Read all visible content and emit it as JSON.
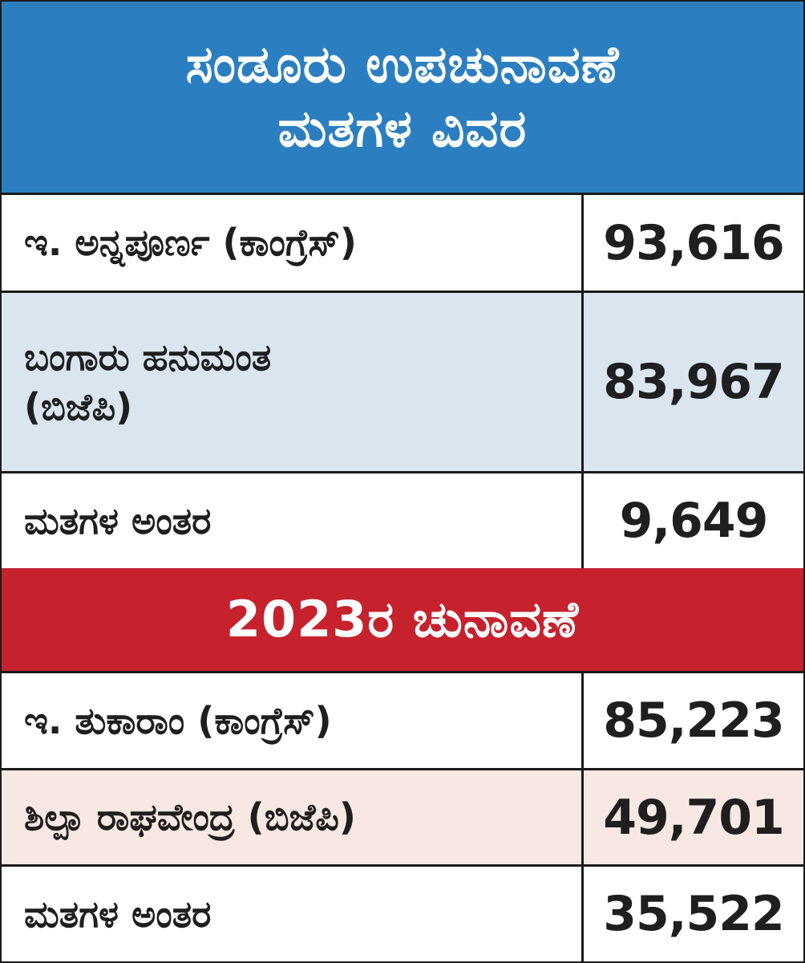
{
  "byelection": {
    "title_line1": "ಸಂಡೂರು ಉಪಚುನಾವಣೆ",
    "title_line2": "ಮತಗಳ ವಿವರ",
    "rows": [
      {
        "name": "ಇ. ಅನ್ನಪೂರ್ಣ (ಕಾಂಗ್ರೆಸ್)",
        "votes": "93,616"
      },
      {
        "name_line1": "ಬಂಗಾರು ಹನುಮಂತ",
        "name_line2": "(ಬಿಜೆಪಿ)",
        "votes": "83,967"
      },
      {
        "name": "ಮತಗಳ ಅಂತರ",
        "votes": "9,649"
      }
    ]
  },
  "election2023": {
    "title": "2023ರ ಚುನಾವಣೆ",
    "rows": [
      {
        "name": "ಇ. ತುಕಾರಾಂ (ಕಾಂಗ್ರೆಸ್)",
        "votes": "85,223"
      },
      {
        "name": "ಶಿಲ್ಪಾ ರಾಘವೇಂದ್ರ (ಬಿಜೆಪಿ)",
        "votes": "49,701"
      },
      {
        "name": "ಮತಗಳ ಅಂತರ",
        "votes": "35,522"
      }
    ]
  },
  "colors": {
    "header_blue": "#2b7fc0",
    "header_red": "#c5222e",
    "row_blue_tint": "#dbe5f0",
    "row_pink_tint": "#f7e8e3"
  }
}
